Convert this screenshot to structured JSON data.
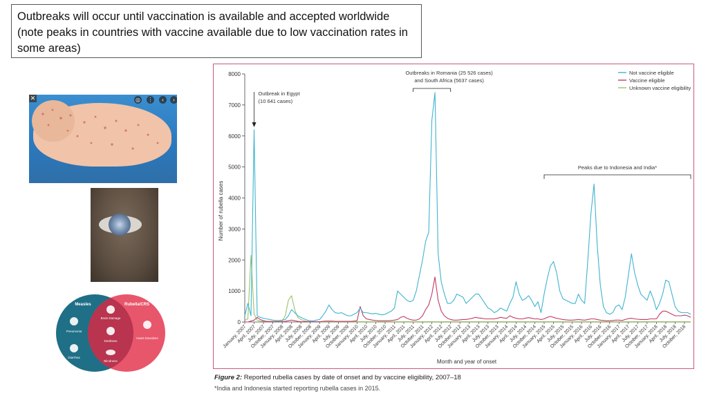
{
  "slide": {
    "title_text": "Outbreaks will occur until vaccination is available and accepted worldwide (note peaks in countries with vaccine available due to low vaccination rates in some areas)"
  },
  "images": {
    "baby_photo": "infant with rash",
    "eye_photo": "eye with cataract",
    "venn": {
      "left_title": "Measles",
      "right_title": "Rubella/CRS",
      "left_items": [
        "Pneumonia",
        "Diarrhea"
      ],
      "center_items": [
        "Brain Damage",
        "Deafness",
        "Blindness"
      ],
      "right_items": [
        "Heart Disorders"
      ],
      "colors": {
        "left": "#1f6f86",
        "right": "#e8566b",
        "overlap": "#b8344f"
      }
    }
  },
  "chart_data": {
    "type": "line",
    "xlabel": "Month and year of onset",
    "ylabel": "Number of rubella cases",
    "ylim": [
      0,
      8000
    ],
    "yticks": [
      0,
      1000,
      2000,
      3000,
      4000,
      5000,
      6000,
      7000,
      8000
    ],
    "x_start": "2007-01",
    "x_end": "2018-12",
    "tick_labels": [
      "January, 2007",
      "April, 2007",
      "July, 2007",
      "October, 2007",
      "January, 2008",
      "April, 2008",
      "July, 2008",
      "October, 2008",
      "January, 2009",
      "April, 2009",
      "July, 2009",
      "October, 2009",
      "January, 2010",
      "April, 2010",
      "July, 2010",
      "October, 2010",
      "January, 2011",
      "April, 2011",
      "July, 2011",
      "October, 2011",
      "January, 2012",
      "April, 2012",
      "July, 2012",
      "October, 2012",
      "January, 2013",
      "April, 2013",
      "July, 2013",
      "October, 2013",
      "January, 2014",
      "April, 2014",
      "July, 2014",
      "October, 2014",
      "January, 2015",
      "April, 2015",
      "July, 2015",
      "October, 2015",
      "January, 2016",
      "April, 2016",
      "July, 2016",
      "October, 2016",
      "January, 2017",
      "April, 2017",
      "July, 2017",
      "October, 2017",
      "January, 2018",
      "April, 2018",
      "July, 2018",
      "October, 2018"
    ],
    "legend_position": "top-right",
    "series": [
      {
        "name": "Not vaccine eligible",
        "color": "#3fb3cf",
        "values": [
          200,
          600,
          200,
          6200,
          200,
          150,
          120,
          100,
          80,
          60,
          50,
          50,
          60,
          80,
          200,
          400,
          300,
          200,
          150,
          100,
          60,
          40,
          40,
          60,
          80,
          200,
          350,
          550,
          400,
          300,
          280,
          300,
          250,
          200,
          200,
          250,
          300,
          450,
          300,
          300,
          280,
          260,
          280,
          250,
          230,
          250,
          300,
          350,
          450,
          1000,
          900,
          800,
          700,
          650,
          700,
          1000,
          1500,
          2000,
          2600,
          2900,
          6500,
          7400,
          2200,
          1300,
          900,
          600,
          600,
          700,
          900,
          850,
          800,
          600,
          700,
          800,
          900,
          900,
          750,
          600,
          450,
          400,
          300,
          350,
          450,
          400,
          350,
          600,
          800,
          1300,
          900,
          700,
          750,
          850,
          700,
          500,
          650,
          300,
          900,
          1400,
          1800,
          1950,
          1600,
          1000,
          750,
          700,
          650,
          600,
          600,
          900,
          700,
          600,
          2000,
          3500,
          4450,
          2500,
          1200,
          500,
          300,
          250,
          300,
          500,
          550,
          400,
          800,
          1500,
          2200,
          1600,
          1200,
          900,
          800,
          700,
          1000,
          750,
          400,
          600,
          900,
          1350,
          1300,
          900,
          500,
          350,
          300,
          300,
          300,
          250
        ]
      },
      {
        "name": "Vaccine eligible",
        "color": "#c23a66",
        "values": [
          0,
          0,
          30,
          60,
          150,
          80,
          40,
          20,
          10,
          10,
          10,
          10,
          10,
          20,
          40,
          60,
          40,
          20,
          10,
          10,
          10,
          10,
          10,
          10,
          10,
          20,
          30,
          30,
          30,
          20,
          20,
          20,
          20,
          20,
          20,
          30,
          40,
          500,
          200,
          100,
          80,
          60,
          50,
          40,
          40,
          40,
          40,
          50,
          60,
          80,
          150,
          180,
          120,
          80,
          60,
          60,
          100,
          200,
          400,
          550,
          900,
          1450,
          700,
          350,
          200,
          120,
          80,
          60,
          60,
          70,
          80,
          80,
          100,
          120,
          150,
          130,
          120,
          100,
          100,
          100,
          100,
          120,
          150,
          130,
          120,
          200,
          150,
          120,
          100,
          100,
          120,
          140,
          120,
          100,
          100,
          80,
          100,
          150,
          180,
          150,
          120,
          100,
          80,
          70,
          60,
          60,
          70,
          80,
          70,
          60,
          80,
          100,
          100,
          80,
          60,
          50,
          40,
          40,
          50,
          60,
          60,
          50,
          80,
          110,
          120,
          100,
          90,
          80,
          80,
          80,
          100,
          100,
          100,
          250,
          350,
          350,
          300,
          250,
          200,
          200,
          200,
          220,
          200,
          150
        ]
      },
      {
        "name": "Unknown vaccine eligibility",
        "color": "#9ac26a",
        "values": [
          50,
          100,
          2150,
          250,
          60,
          30,
          20,
          20,
          20,
          20,
          20,
          20,
          30,
          200,
          700,
          850,
          400,
          150,
          80,
          40,
          20,
          10,
          10,
          10,
          10,
          10,
          10,
          10,
          10,
          10,
          10,
          10,
          10,
          10,
          10,
          10,
          10,
          10,
          10,
          10,
          10,
          10,
          10,
          10,
          10,
          10,
          10,
          10,
          10,
          10,
          10,
          10,
          10,
          10,
          10,
          10,
          10,
          10,
          10,
          10,
          10,
          10,
          10,
          10,
          10,
          10,
          10,
          10,
          10,
          10,
          10,
          10,
          10,
          10,
          10,
          10,
          10,
          10,
          10,
          10,
          10,
          10,
          10,
          10,
          10,
          10,
          10,
          10,
          10,
          10,
          10,
          10,
          10,
          10,
          10,
          10,
          10,
          10,
          10,
          10,
          10,
          10,
          10,
          10,
          10,
          10,
          10,
          10,
          10,
          10,
          10,
          10,
          10,
          10,
          10,
          10,
          10,
          10,
          10,
          10,
          10,
          10,
          10,
          10,
          10,
          10,
          10,
          10,
          10,
          10,
          10,
          10,
          10,
          10,
          10,
          10,
          10,
          10,
          10,
          10,
          10,
          10,
          10,
          10
        ]
      }
    ],
    "annotations": [
      {
        "text": "Outbreak in Egypt",
        "text2": "(10 641 cases)",
        "at_month": 3
      },
      {
        "text": "Outbreaks in Romania (25 526 cases)",
        "text2": "and South Africa (5637 cases)",
        "from_month": 54,
        "to_month": 66
      },
      {
        "text": "Peaks due to Indonesia and India*",
        "from_month": 96,
        "to_month": 143
      }
    ]
  },
  "caption": {
    "figure_label": "Figure 2:",
    "text": " Reported rubella cases by date of onset and by vaccine eligibility, 2007–18",
    "footnote": "*India and Indonesia started reporting rubella cases in 2015."
  }
}
